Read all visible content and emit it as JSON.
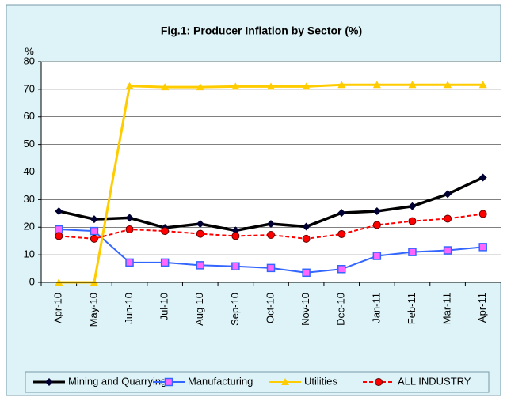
{
  "chart_data": {
    "type": "line",
    "title": "Fig.1: Producer  Inflation by Sector (%)",
    "y_label": "%",
    "categories": [
      "Apr-10",
      "May-10",
      "Jun-10",
      "Jul-10",
      "Aug-10",
      "Sep-10",
      "Oct-10",
      "Nov-10",
      "Dec-10",
      "Jan-11",
      "Feb-11",
      "Mar-11",
      "Apr-11"
    ],
    "series": [
      {
        "name": "Mining and Quarrying",
        "color": "#000000",
        "marker": "diamond",
        "values": [
          25.8,
          22.9,
          23.4,
          19.8,
          21.2,
          18.8,
          21.2,
          20.2,
          25.2,
          25.8,
          27.6,
          32,
          38
        ]
      },
      {
        "name": "Manufacturing",
        "color": "#3366ff",
        "marker": "square",
        "values": [
          19.2,
          18.6,
          7.2,
          7.2,
          6.2,
          5.8,
          5.2,
          3.5,
          4.8,
          9.6,
          11,
          11.6,
          12.8
        ]
      },
      {
        "name": "Utilities",
        "color": "#ffcc00",
        "marker": "triangle",
        "values": [
          0,
          0,
          71.2,
          70.8,
          70.8,
          71,
          71,
          71,
          71.6,
          71.6,
          71.6,
          71.6,
          71.6
        ]
      },
      {
        "name": "ALL INDUSTRY",
        "color": "#ff0000",
        "marker": "circle",
        "dashed": true,
        "values": [
          16.8,
          15.8,
          19.2,
          18.6,
          17.6,
          16.8,
          17.2,
          15.8,
          17.5,
          20.8,
          22.2,
          23.1,
          24.8
        ]
      }
    ],
    "ylim": [
      0,
      80
    ],
    "yticks": [
      0,
      10,
      20,
      30,
      40,
      50,
      60,
      70,
      80
    ],
    "grid": true,
    "legend": "bottom"
  }
}
